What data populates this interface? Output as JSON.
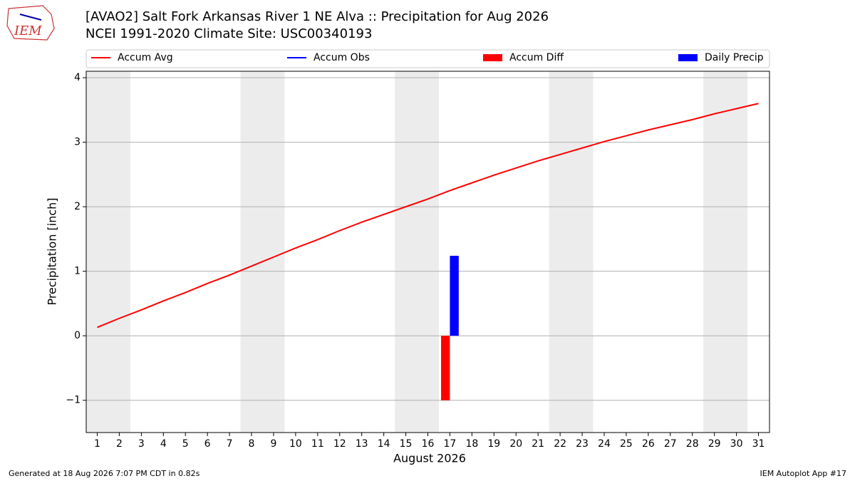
{
  "logo_text": "IEM",
  "footer_left": "Generated at 18 Aug 2026 7:07 PM CDT in 0.82s",
  "footer_right": "IEM Autoplot App #17",
  "chart_data": {
    "type": "combo",
    "title": "[AVAO2] Salt Fork Arkansas River 1 NE Alva :: Precipitation for Aug 2026",
    "subtitle": "NCEI 1991-2020 Climate Site: USC00340193",
    "x_label": "August 2026",
    "y_label": "Precipitation [inch]",
    "x": [
      1,
      2,
      3,
      4,
      5,
      6,
      7,
      8,
      9,
      10,
      11,
      12,
      13,
      14,
      15,
      16,
      17,
      18,
      19,
      20,
      21,
      22,
      23,
      24,
      25,
      26,
      27,
      28,
      29,
      30,
      31
    ],
    "xlim": [
      0.5,
      31.5
    ],
    "xticks": [
      1,
      2,
      3,
      4,
      5,
      6,
      7,
      8,
      9,
      10,
      11,
      12,
      13,
      14,
      15,
      16,
      17,
      18,
      19,
      20,
      21,
      22,
      23,
      24,
      25,
      26,
      27,
      28,
      29,
      30,
      31
    ],
    "ylim": [
      -1.5,
      4.1
    ],
    "yticks": [
      {
        "value": -1,
        "label": "−1"
      },
      0,
      1,
      2,
      3,
      4
    ],
    "grid": true,
    "shaded_ranges": [
      [
        0.5,
        2.5
      ],
      [
        7.5,
        9.5
      ],
      [
        14.5,
        16.5
      ],
      [
        21.5,
        23.5
      ],
      [
        28.5,
        30.5
      ]
    ],
    "shade_color": "#ececec",
    "series": [
      {
        "name": "Accum Avg",
        "type": "line",
        "color": "#ff0000",
        "values": [
          0.13,
          0.27,
          0.4,
          0.54,
          0.67,
          0.81,
          0.94,
          1.08,
          1.22,
          1.36,
          1.49,
          1.63,
          1.76,
          1.88,
          2.0,
          2.12,
          2.25,
          2.37,
          2.49,
          2.6,
          2.71,
          2.81,
          2.91,
          3.01,
          3.1,
          3.19,
          3.27,
          3.35,
          3.44,
          3.52,
          3.6
        ]
      },
      {
        "name": "Accum Obs",
        "type": "line",
        "color": "#0000ff",
        "values": [
          null,
          null,
          null,
          null,
          null,
          null,
          null,
          null,
          null,
          null,
          null,
          null,
          null,
          null,
          null,
          null,
          null,
          null,
          null,
          null,
          null,
          null,
          null,
          null,
          null,
          null,
          null,
          null,
          null,
          null,
          null
        ]
      },
      {
        "name": "Accum Diff",
        "type": "bar",
        "color": "#ff0000",
        "values": [
          null,
          null,
          null,
          null,
          null,
          null,
          null,
          null,
          null,
          null,
          null,
          null,
          null,
          null,
          null,
          null,
          -1.0,
          null,
          null,
          null,
          null,
          null,
          null,
          null,
          null,
          null,
          null,
          null,
          null,
          null,
          null
        ]
      },
      {
        "name": "Daily Precip",
        "type": "bar",
        "color": "#0000ff",
        "values": [
          null,
          null,
          null,
          null,
          null,
          null,
          null,
          null,
          null,
          null,
          null,
          null,
          null,
          null,
          null,
          null,
          1.24,
          null,
          null,
          null,
          null,
          null,
          null,
          null,
          null,
          null,
          null,
          null,
          null,
          null,
          null
        ]
      }
    ]
  }
}
